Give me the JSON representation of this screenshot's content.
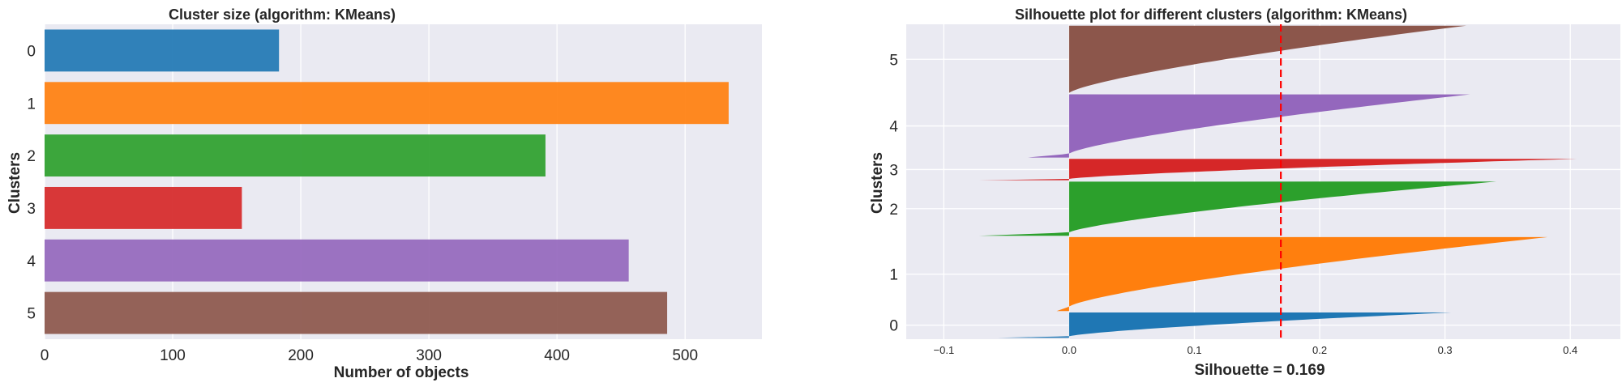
{
  "colors": {
    "panel_bg": "#eaeaf2",
    "grid": "#ffffff",
    "text": "#262626",
    "mean_line": "#ff0000",
    "cluster_0": "#1f77b4",
    "cluster_1": "#ff7f0e",
    "cluster_2": "#2ca02c",
    "cluster_3": "#d62728",
    "cluster_4": "#9467bd",
    "cluster_5": "#8c564b"
  },
  "chart_data": [
    {
      "type": "bar",
      "orientation": "horizontal",
      "title": "Cluster size (algorithm: KMeans)",
      "xlabel": "Number of objects",
      "ylabel": "Clusters",
      "categories": [
        "0",
        "1",
        "2",
        "3",
        "4",
        "5"
      ],
      "values": [
        183,
        534,
        391,
        154,
        456,
        486
      ],
      "xlim": [
        0,
        560
      ],
      "xticks": [
        0,
        100,
        200,
        300,
        400,
        500
      ],
      "grid": true
    },
    {
      "type": "area",
      "title": "Silhouette plot for different clusters (algorithm: KMeans)",
      "xlabel": "Silhouette = 0.169",
      "ylabel": "Clusters",
      "mean_silhouette": 0.169,
      "xlim": [
        -0.13,
        0.44
      ],
      "xticks": [
        -0.1,
        0.0,
        0.1,
        0.2,
        0.3,
        0.4
      ],
      "xtick_labels": [
        "−0.1",
        "0.0",
        "0.1",
        "0.2",
        "0.3",
        "0.4"
      ],
      "grid": true,
      "clusters": [
        {
          "label": "0",
          "size": 183,
          "max": 0.305,
          "min": -0.057
        },
        {
          "label": "1",
          "size": 534,
          "max": 0.382,
          "min": -0.01
        },
        {
          "label": "2",
          "size": 391,
          "max": 0.341,
          "min": -0.072
        },
        {
          "label": "3",
          "size": 154,
          "max": 0.405,
          "min": -0.072
        },
        {
          "label": "4",
          "size": 456,
          "max": 0.32,
          "min": -0.033
        },
        {
          "label": "5",
          "size": 486,
          "max": 0.317,
          "min": 0.0
        }
      ]
    }
  ]
}
